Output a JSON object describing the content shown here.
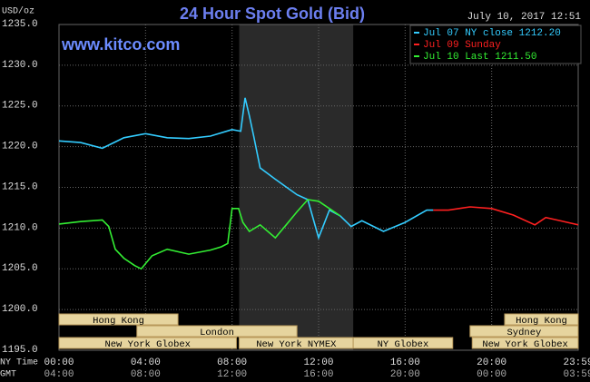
{
  "chart_data": {
    "type": "line",
    "title": "24 Hour Spot Gold (Bid)",
    "watermark": "www.kitco.com",
    "y_label": "USD/oz",
    "timestamp": "July 10, 2017 12:51",
    "x_row_labels": [
      "NY Time",
      "GMT"
    ],
    "xlim": [
      0,
      24
    ],
    "ylim": [
      1195,
      1235
    ],
    "grid": true,
    "legend": "top-right",
    "xticks": [
      {
        "value": 0,
        "label": "00:00"
      },
      {
        "value": 4,
        "label": "04:00"
      },
      {
        "value": 8,
        "label": "08:00"
      },
      {
        "value": 12,
        "label": "12:00"
      },
      {
        "value": 16,
        "label": "16:00"
      },
      {
        "value": 20,
        "label": "20:00"
      },
      {
        "value": 24,
        "label": "23:59"
      }
    ],
    "xticks_gmt": [
      "04:00",
      "08:00",
      "12:00",
      "16:00",
      "20:00",
      "00:00",
      "03:59"
    ],
    "yticks": [
      {
        "value": 1235,
        "label": "1235.0"
      },
      {
        "value": 1230,
        "label": "1230.0"
      },
      {
        "value": 1225,
        "label": "1225.0"
      },
      {
        "value": 1220,
        "label": "1220.0"
      },
      {
        "value": 1215,
        "label": "1215.0"
      },
      {
        "value": 1210,
        "label": "1210.0"
      },
      {
        "value": 1205,
        "label": "1205.0"
      },
      {
        "value": 1200,
        "label": "1200.0"
      },
      {
        "value": 1195,
        "label": "1195.0"
      }
    ],
    "shade": {
      "start": 8.33,
      "end": 13.6,
      "color": "#2a2a2a"
    },
    "series": [
      {
        "name": "Jul 07 NY close 1212.20",
        "color": "#33ccff",
        "x": [
          0,
          1,
          2,
          3,
          4,
          5,
          6,
          7,
          8,
          8.4,
          8.6,
          8.8,
          9,
          9.3,
          10,
          11,
          11.5,
          12,
          12.5,
          13,
          13.5,
          14,
          15,
          16,
          17,
          17.3
        ],
        "values": [
          1220.7,
          1220.5,
          1219.8,
          1221.1,
          1221.6,
          1221.1,
          1221.0,
          1221.3,
          1222.1,
          1221.9,
          1226.0,
          1223.8,
          1221.3,
          1217.4,
          1216.0,
          1214.1,
          1213.5,
          1208.8,
          1212.2,
          1211.5,
          1210.2,
          1210.9,
          1209.6,
          1210.7,
          1212.2,
          1212.2
        ]
      },
      {
        "name": "Jul 09 Sunday",
        "color": "#ff2020",
        "x": [
          17.3,
          18,
          19,
          20,
          21,
          22,
          22.5,
          23,
          24
        ],
        "values": [
          1212.2,
          1212.2,
          1212.6,
          1212.4,
          1211.6,
          1210.4,
          1211.3,
          1211.0,
          1210.4
        ]
      },
      {
        "name": "Jul 10 Last 1211.50",
        "color": "#33ee33",
        "x": [
          0,
          1,
          2,
          2.3,
          2.6,
          3,
          3.5,
          3.8,
          4.3,
          5,
          6,
          7,
          7.5,
          7.8,
          8,
          8.3,
          8.5,
          8.8,
          9.3,
          10,
          10.5,
          11,
          11.5,
          12,
          12.5,
          13
        ],
        "values": [
          1210.5,
          1210.8,
          1211.0,
          1210.2,
          1207.4,
          1206.3,
          1205.4,
          1205.0,
          1206.6,
          1207.4,
          1206.8,
          1207.3,
          1207.7,
          1208.1,
          1212.4,
          1212.4,
          1210.7,
          1209.6,
          1210.4,
          1208.8,
          1210.4,
          1212.0,
          1213.5,
          1213.3,
          1212.4,
          1211.5
        ]
      }
    ],
    "sessions": [
      {
        "label": "Hong Kong",
        "start": 0,
        "end": 5.5,
        "row": 0
      },
      {
        "label": "Hong Kong",
        "start": 20.6,
        "end": 24,
        "row": 0
      },
      {
        "label": "London",
        "start": 3.6,
        "end": 11.0,
        "row": 1
      },
      {
        "label": "Sydney",
        "start": 19.0,
        "end": 24,
        "row": 1
      },
      {
        "label": "New York Globex",
        "start": 0,
        "end": 8.2,
        "row": 2
      },
      {
        "label": "New York NYMEX",
        "start": 8.33,
        "end": 13.6,
        "row": 2
      },
      {
        "label": "NY Globex",
        "start": 13.6,
        "end": 18.2,
        "row": 2
      },
      {
        "label": "New York Globex",
        "start": 19.1,
        "end": 24,
        "row": 2
      }
    ]
  }
}
